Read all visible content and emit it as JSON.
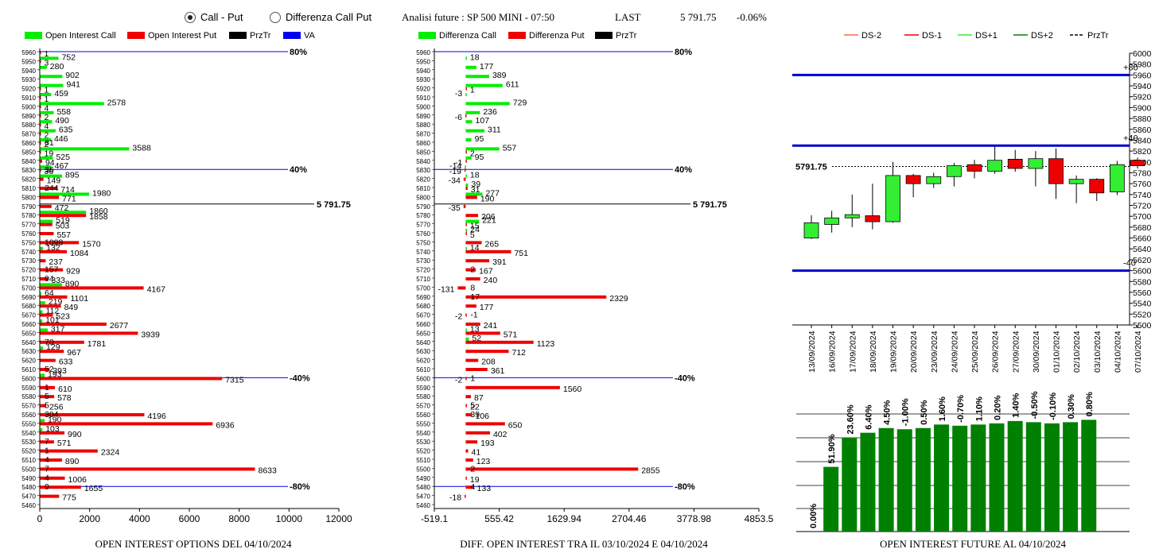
{
  "header": {
    "radio_call_put": "Call - Put",
    "radio_diff": "Differenza Call Put",
    "radio_selected": "call_put",
    "analysis": "Analisi future : SP 500 MINI - 07:50",
    "last_label": "LAST",
    "last_value": "5 791.75",
    "change": "-0.06%"
  },
  "colors": {
    "call": "#00ee00",
    "put": "#ee0000",
    "przTr": "#000000",
    "va": "#0000ee",
    "bar": "#008000"
  },
  "chart_data": [
    {
      "id": "oi-options",
      "type": "bar",
      "orientation": "horizontal",
      "title": "OPEN INTEREST OPTIONS DEL 04/10/2024",
      "legend": [
        "Open Interest Call",
        "Open Interest Put",
        "PrzTr",
        "VA"
      ],
      "xlim": [
        0,
        12000
      ],
      "xticks": [
        "0",
        "2000",
        "4000",
        "6000",
        "8000",
        "10000",
        "12000"
      ],
      "strikes": [
        5960,
        5950,
        5940,
        5930,
        5920,
        5910,
        5900,
        5890,
        5880,
        5870,
        5860,
        5850,
        5840,
        5830,
        5820,
        5810,
        5800,
        5790,
        5780,
        5770,
        5760,
        5750,
        5740,
        5730,
        5720,
        5710,
        5700,
        5690,
        5680,
        5670,
        5660,
        5650,
        5640,
        5630,
        5620,
        5610,
        5600,
        5590,
        5580,
        5570,
        5560,
        5550,
        5540,
        5530,
        5520,
        5510,
        5500,
        5490,
        5480,
        5470,
        5460
      ],
      "series": [
        {
          "name": "Open Interest Call",
          "values": [
            null,
            752,
            280,
            902,
            941,
            459,
            2578,
            558,
            490,
            635,
            446,
            3588,
            525,
            467,
            895,
            null,
            1980,
            null,
            1860,
            519,
            null,
            null,
            132,
            null,
            null,
            null,
            890,
            64,
            219,
            112,
            101,
            317,
            null,
            129,
            null,
            null,
            193,
            null,
            null,
            null,
            null,
            190,
            103,
            null,
            null,
            null,
            null,
            null,
            null,
            null,
            null
          ]
        },
        {
          "name": "Open Interest Put",
          "values": [
            1,
            3,
            null,
            null,
            1,
            1,
            4,
            2,
            4,
            2,
            2,
            19,
            94,
            36,
            149,
            714,
            771,
            472,
            1858,
            503,
            557,
            1570,
            1084,
            237,
            929,
            333,
            4167,
            1101,
            849,
            523,
            2677,
            3939,
            1781,
            967,
            633,
            393,
            7315,
            610,
            578,
            256,
            4196,
            6936,
            990,
            571,
            2324,
            890,
            8633,
            1006,
            1655,
            775,
            null
          ]
        },
        {
          "name": "Open Interest Put (secondary labels)",
          "values": [
            null,
            null,
            null,
            null,
            null,
            null,
            null,
            null,
            null,
            null,
            81,
            null,
            null,
            36,
            null,
            244,
            null,
            null,
            null,
            null,
            null,
            1098,
            null,
            null,
            157,
            94,
            null,
            null,
            null,
            null,
            null,
            null,
            70,
            null,
            null,
            52,
            null,
            1,
            5,
            5,
            304,
            null,
            null,
            7,
            1,
            4,
            7,
            4,
            9,
            null,
            null
          ]
        }
      ],
      "przTr": {
        "value": 5791.75,
        "label": "5 791.75"
      },
      "va_lines": [
        {
          "strike": 5960,
          "label": "80%"
        },
        {
          "strike": 5830,
          "label": "40%"
        },
        {
          "strike": 5600,
          "label": "-40%"
        },
        {
          "strike": 5480,
          "label": "-80%"
        }
      ]
    },
    {
      "id": "diff-oi",
      "type": "bar",
      "orientation": "horizontal",
      "title": "DIFF. OPEN INTEREST TRA IL 03/10/2024 E 04/10/2024",
      "legend": [
        "Differenza Call",
        "Differenza Put",
        "PrzTr"
      ],
      "xlim": [
        -519.1,
        4853.5
      ],
      "xticks": [
        "-519.1",
        "555.42",
        "1629.94",
        "2704.46",
        "3778.98",
        "4853.5"
      ],
      "strikes": [
        5960,
        5950,
        5940,
        5930,
        5920,
        5910,
        5900,
        5890,
        5880,
        5870,
        5860,
        5850,
        5840,
        5830,
        5820,
        5810,
        5800,
        5790,
        5780,
        5770,
        5760,
        5750,
        5740,
        5730,
        5720,
        5710,
        5700,
        5690,
        5680,
        5670,
        5660,
        5650,
        5640,
        5630,
        5620,
        5610,
        5600,
        5590,
        5580,
        5570,
        5560,
        5550,
        5540,
        5530,
        5520,
        5510,
        5500,
        5490,
        5480,
        5470,
        5460
      ],
      "series": [
        {
          "name": "Differenza Call",
          "values": [
            null,
            18,
            177,
            389,
            611,
            -3,
            729,
            236,
            107,
            311,
            95,
            557,
            95,
            -14,
            18,
            39,
            277,
            null,
            null,
            221,
            24,
            null,
            14,
            null,
            null,
            null,
            null,
            null,
            null,
            null,
            null,
            13,
            52,
            null,
            null,
            null,
            null,
            null,
            null,
            null,
            null,
            null,
            null,
            null,
            null,
            null,
            null,
            null,
            null,
            null,
            null
          ]
        },
        {
          "name": "Differenza Put",
          "values": [
            null,
            null,
            null,
            null,
            1,
            null,
            null,
            -6,
            null,
            null,
            null,
            2,
            -1,
            -19,
            -34,
            31,
            190,
            -35,
            206,
            15,
            5,
            265,
            751,
            391,
            167,
            240,
            -131,
            2329,
            177,
            -2,
            241,
            571,
            1123,
            712,
            208,
            361,
            -2,
            1560,
            87,
            22,
            106,
            650,
            402,
            193,
            41,
            123,
            2855,
            19,
            133,
            -18,
            null
          ]
        },
        {
          "name": "Differenza (extra labels)",
          "values": [
            null,
            null,
            null,
            null,
            null,
            null,
            null,
            null,
            null,
            null,
            null,
            null,
            null,
            null,
            null,
            null,
            null,
            null,
            null,
            null,
            null,
            null,
            null,
            null,
            2,
            null,
            8,
            17,
            null,
            -1,
            null,
            null,
            null,
            null,
            null,
            null,
            1,
            null,
            null,
            5,
            39,
            null,
            null,
            null,
            null,
            null,
            2,
            null,
            4,
            null,
            null
          ]
        }
      ],
      "przTr": {
        "value": 5791.75,
        "label": "5 791.75"
      },
      "va_lines": [
        {
          "strike": 5960,
          "label": "80%"
        },
        {
          "strike": 5830,
          "label": "40%"
        },
        {
          "strike": 5600,
          "label": "-40%"
        },
        {
          "strike": 5480,
          "label": "-80%"
        }
      ]
    },
    {
      "id": "candles",
      "type": "candlestick",
      "legend": [
        "DS-2",
        "DS-1",
        "DS+1",
        "DS+2",
        "PrzTr"
      ],
      "ylim": [
        5500,
        6000
      ],
      "yticks": [
        "6000",
        "5980",
        "5960",
        "5940",
        "5920",
        "5900",
        "5880",
        "5860",
        "5840",
        "5820",
        "5800",
        "5780",
        "5760",
        "5740",
        "5720",
        "5700",
        "5680",
        "5660",
        "5640",
        "5620",
        "5600",
        "5580",
        "5560",
        "5540",
        "5520",
        "5500"
      ],
      "dates": [
        "13/09/2024",
        "16/09/2024",
        "17/09/2024",
        "18/09/2024",
        "19/09/2024",
        "20/09/2024",
        "23/09/2024",
        "24/09/2024",
        "25/09/2024",
        "26/09/2024",
        "27/09/2024",
        "30/09/2024",
        "01/10/2024",
        "02/10/2024",
        "03/10/2024",
        "04/10/2024",
        "07/10/2024"
      ],
      "candles": [
        {
          "o": 5660,
          "h": 5702,
          "l": 5658,
          "c": 5688
        },
        {
          "o": 5685,
          "h": 5710,
          "l": 5670,
          "c": 5697
        },
        {
          "o": 5697,
          "h": 5740,
          "l": 5680,
          "c": 5703
        },
        {
          "o": 5701,
          "h": 5760,
          "l": 5676,
          "c": 5690
        },
        {
          "o": 5690,
          "h": 5800,
          "l": 5688,
          "c": 5775
        },
        {
          "o": 5775,
          "h": 5778,
          "l": 5735,
          "c": 5760
        },
        {
          "o": 5760,
          "h": 5780,
          "l": 5752,
          "c": 5773
        },
        {
          "o": 5773,
          "h": 5798,
          "l": 5755,
          "c": 5793
        },
        {
          "o": 5795,
          "h": 5804,
          "l": 5770,
          "c": 5783
        },
        {
          "o": 5783,
          "h": 5828,
          "l": 5778,
          "c": 5803
        },
        {
          "o": 5805,
          "h": 5822,
          "l": 5782,
          "c": 5788
        },
        {
          "o": 5788,
          "h": 5820,
          "l": 5755,
          "c": 5806
        },
        {
          "o": 5806,
          "h": 5825,
          "l": 5732,
          "c": 5760
        },
        {
          "o": 5760,
          "h": 5775,
          "l": 5724,
          "c": 5768
        },
        {
          "o": 5768,
          "h": 5770,
          "l": 5728,
          "c": 5743
        },
        {
          "o": 5745,
          "h": 5802,
          "l": 5739,
          "c": 5795
        },
        {
          "o": 5803,
          "h": 5808,
          "l": 5788,
          "c": 5793
        }
      ],
      "przTr": {
        "value": 5791.75,
        "label": "5791.75"
      },
      "h_lines": [
        {
          "value": 5960,
          "label": "+80"
        },
        {
          "value": 5830,
          "label": "+40"
        },
        {
          "value": 5600,
          "label": "-40"
        }
      ]
    },
    {
      "id": "oi-future",
      "type": "bar",
      "title": "OPEN INTEREST FUTURE AL 04/10/2024",
      "bar_labels": [
        "0.00%",
        "51.90%",
        "23.60%",
        "6.40%",
        "4.50%",
        "-1.00%",
        "0.50%",
        "1.60%",
        "-0.70%",
        "1.10%",
        "0.20%",
        "1.40%",
        "-0.50%",
        "-0.10%",
        "0.30%",
        "0.80%"
      ],
      "values": [
        0,
        55,
        80,
        84,
        88,
        87,
        88,
        91,
        90,
        91,
        92,
        94,
        93,
        92,
        93,
        95
      ]
    }
  ]
}
